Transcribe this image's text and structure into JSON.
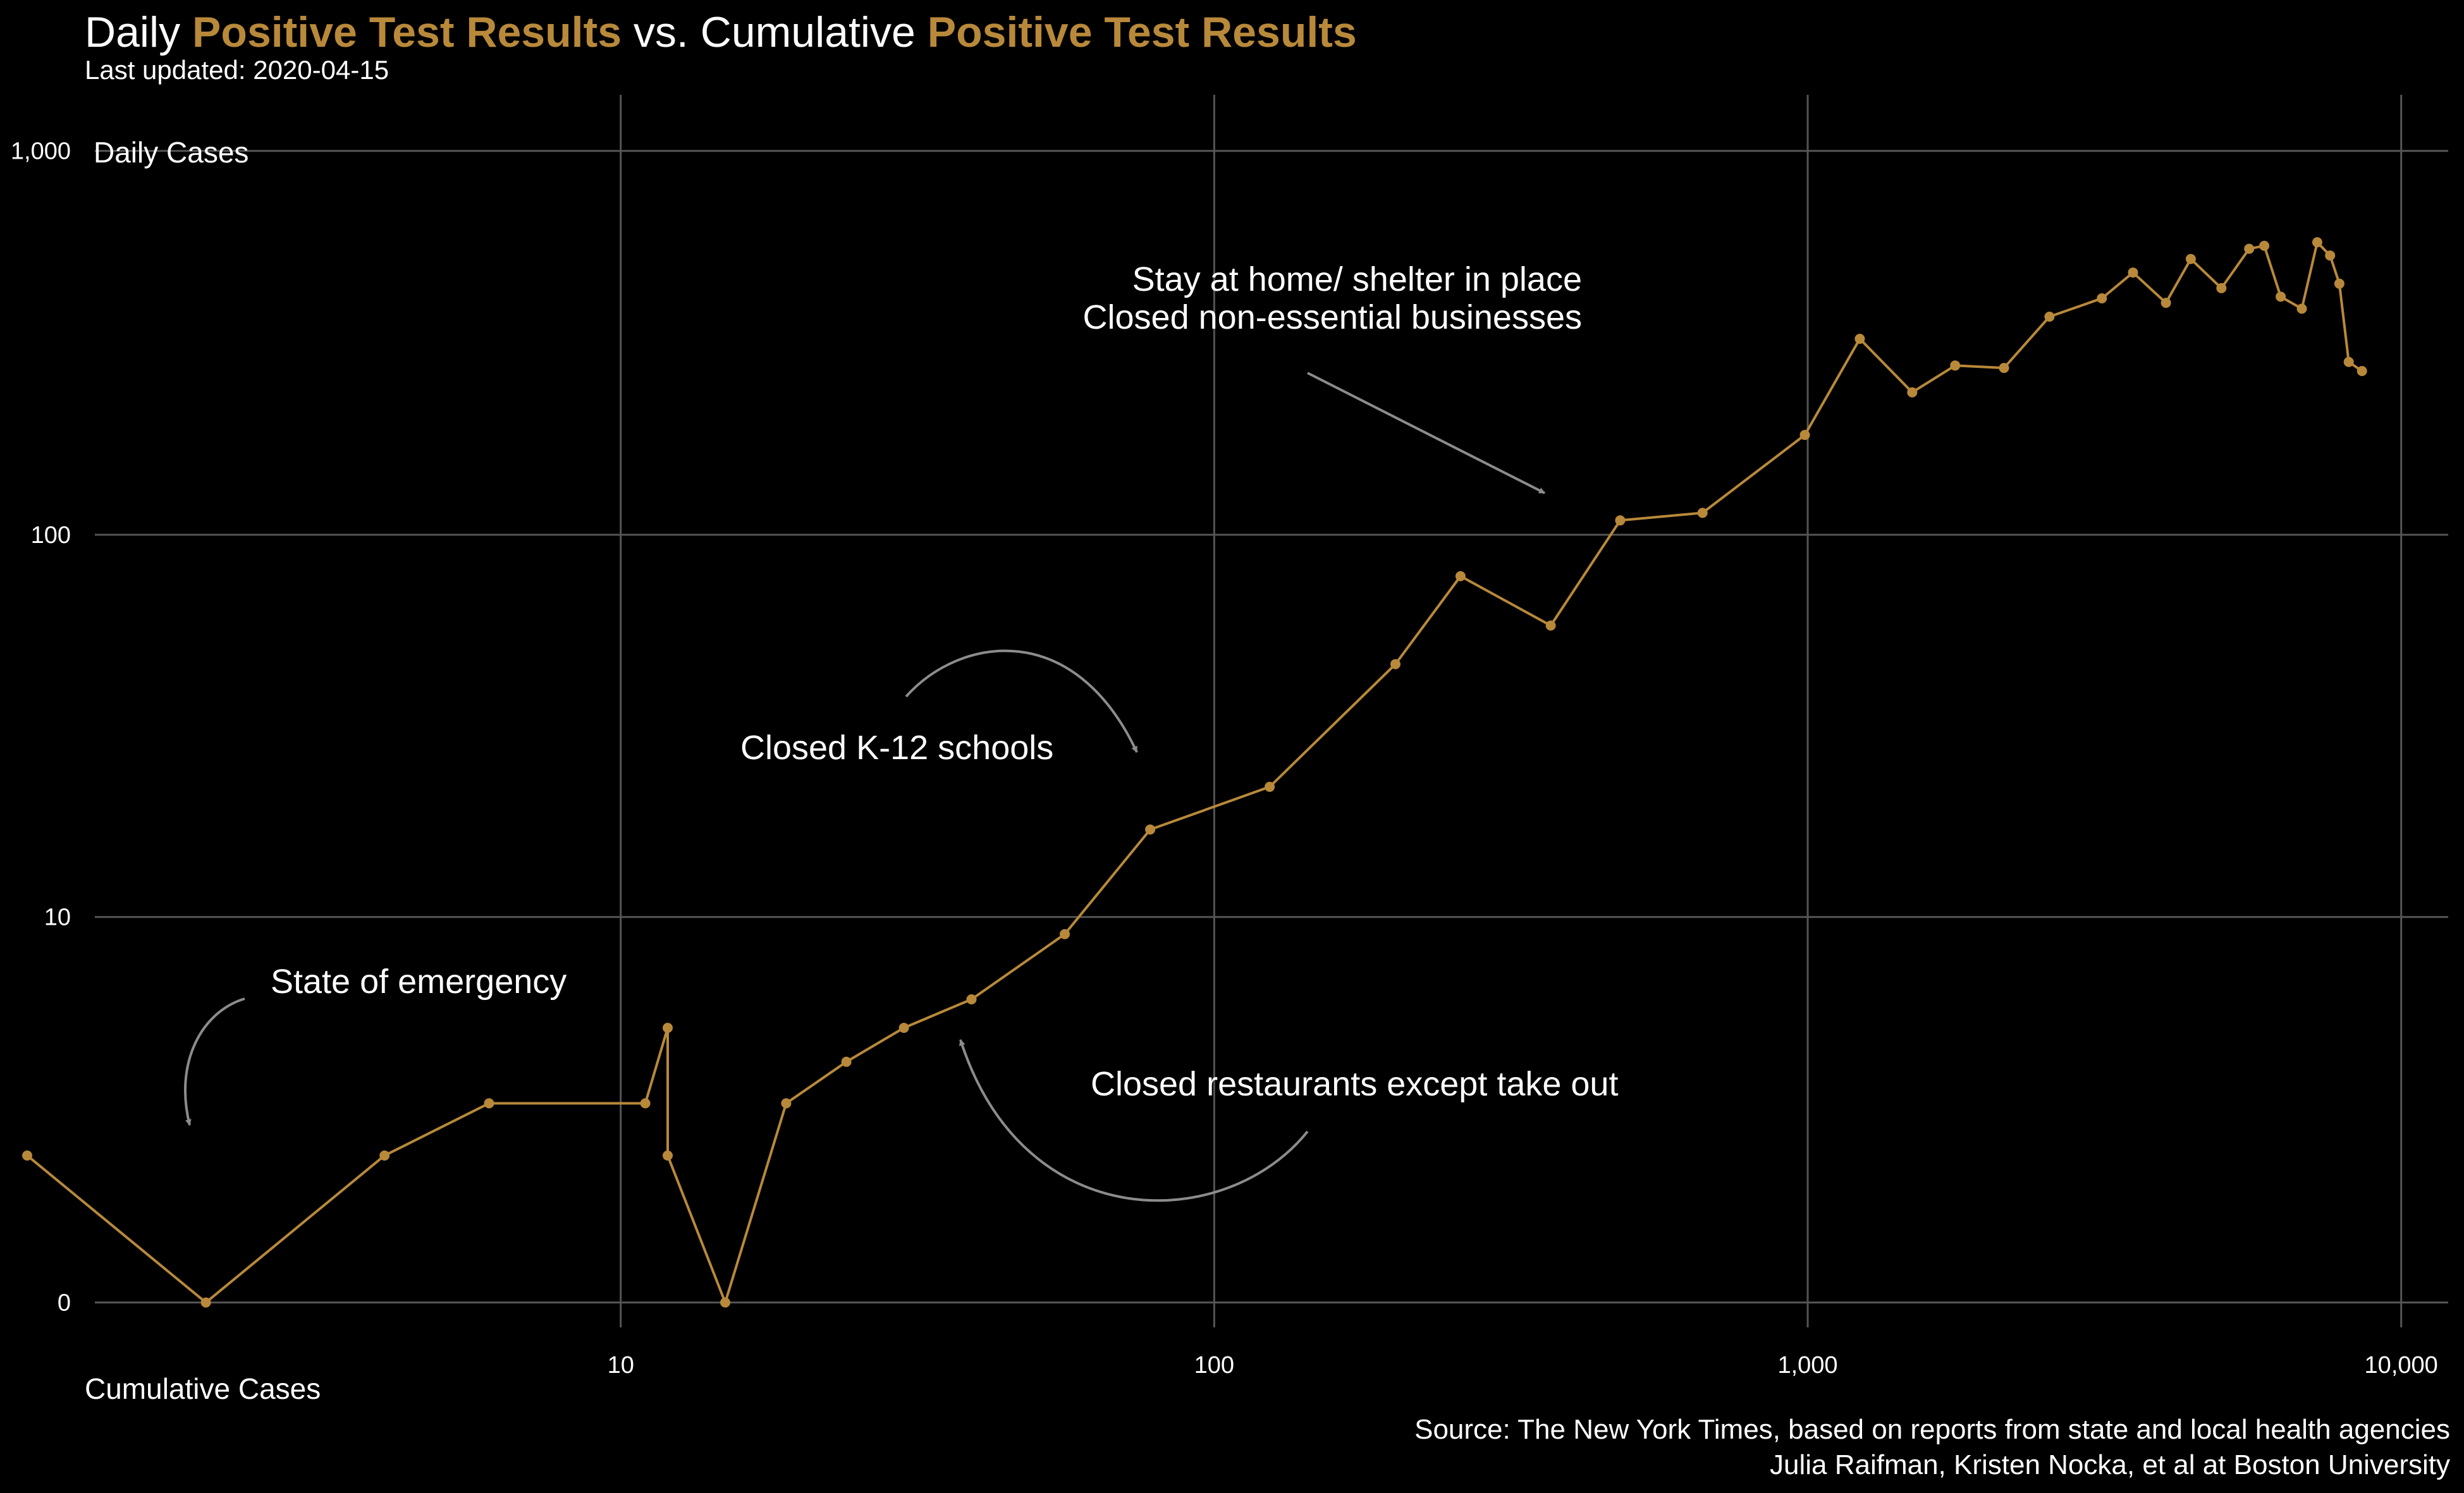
{
  "title_parts": [
    {
      "text": "Daily ",
      "hl": false
    },
    {
      "text": "Positive Test Results",
      "hl": true
    },
    {
      "text": " vs. Cumulative ",
      "hl": false
    },
    {
      "text": "Positive Test Results",
      "hl": true
    }
  ],
  "subtitle": "Last updated: 2020-04-15",
  "source_lines": [
    "Source: The New York Times, based on reports from state and local health agencies",
    "Julia Raifman,  Kristen Nocka, et al at Boston University"
  ],
  "colors": {
    "background": "#000000",
    "line": "#b8893a",
    "grid": "#555555",
    "text": "#ffffff",
    "arrow": "#8c8c8c"
  },
  "chart_data": {
    "type": "line",
    "xlabel": "Cumulative Cases",
    "ylabel": "Daily Cases",
    "x_scale": "log",
    "y_scale": "pseudo-log",
    "x_ticks": [
      {
        "value": 10,
        "label": "10"
      },
      {
        "value": 100,
        "label": "100"
      },
      {
        "value": 1000,
        "label": "1,000"
      },
      {
        "value": 10000,
        "label": "10,000"
      }
    ],
    "y_ticks": [
      {
        "value": 0,
        "label": "0"
      },
      {
        "value": 10,
        "label": "10"
      },
      {
        "value": 100,
        "label": "100"
      },
      {
        "value": 1000,
        "label": "1,000"
      }
    ],
    "xlim": [
      1.3,
      12000
    ],
    "ylim": [
      -0.3,
      1400
    ],
    "grid": true,
    "series": [
      {
        "x": [
          1,
          2,
          4,
          6,
          11,
          12,
          12,
          15,
          19,
          24,
          30,
          39,
          56,
          78,
          124,
          202,
          260,
          369,
          483,
          665,
          989,
          1224,
          1500,
          1772,
          2142,
          2555,
          3131,
          3533,
          4014,
          4421,
          4978,
          5544,
          5878,
          6266,
          6800,
          7221,
          7588,
          7867,
          8159,
          8590
        ],
        "y": [
          2,
          0,
          2,
          3,
          3,
          5,
          2,
          0,
          3,
          4,
          5,
          6,
          9,
          17,
          22,
          46,
          78,
          58,
          109,
          114,
          182,
          324,
          235,
          276,
          272,
          370,
          413,
          482,
          402,
          523,
          439,
          556,
          566,
          417,
          388,
          578,
          534,
          451,
          282,
          267
        ]
      }
    ],
    "annotations": [
      {
        "text": "State of emergency"
      },
      {
        "text": "Closed K-12 schools"
      },
      {
        "text": "Closed restaurants except take out"
      },
      {
        "text": "Stay at home/ shelter in place"
      },
      {
        "text": "Closed non-essential businesses"
      }
    ]
  }
}
